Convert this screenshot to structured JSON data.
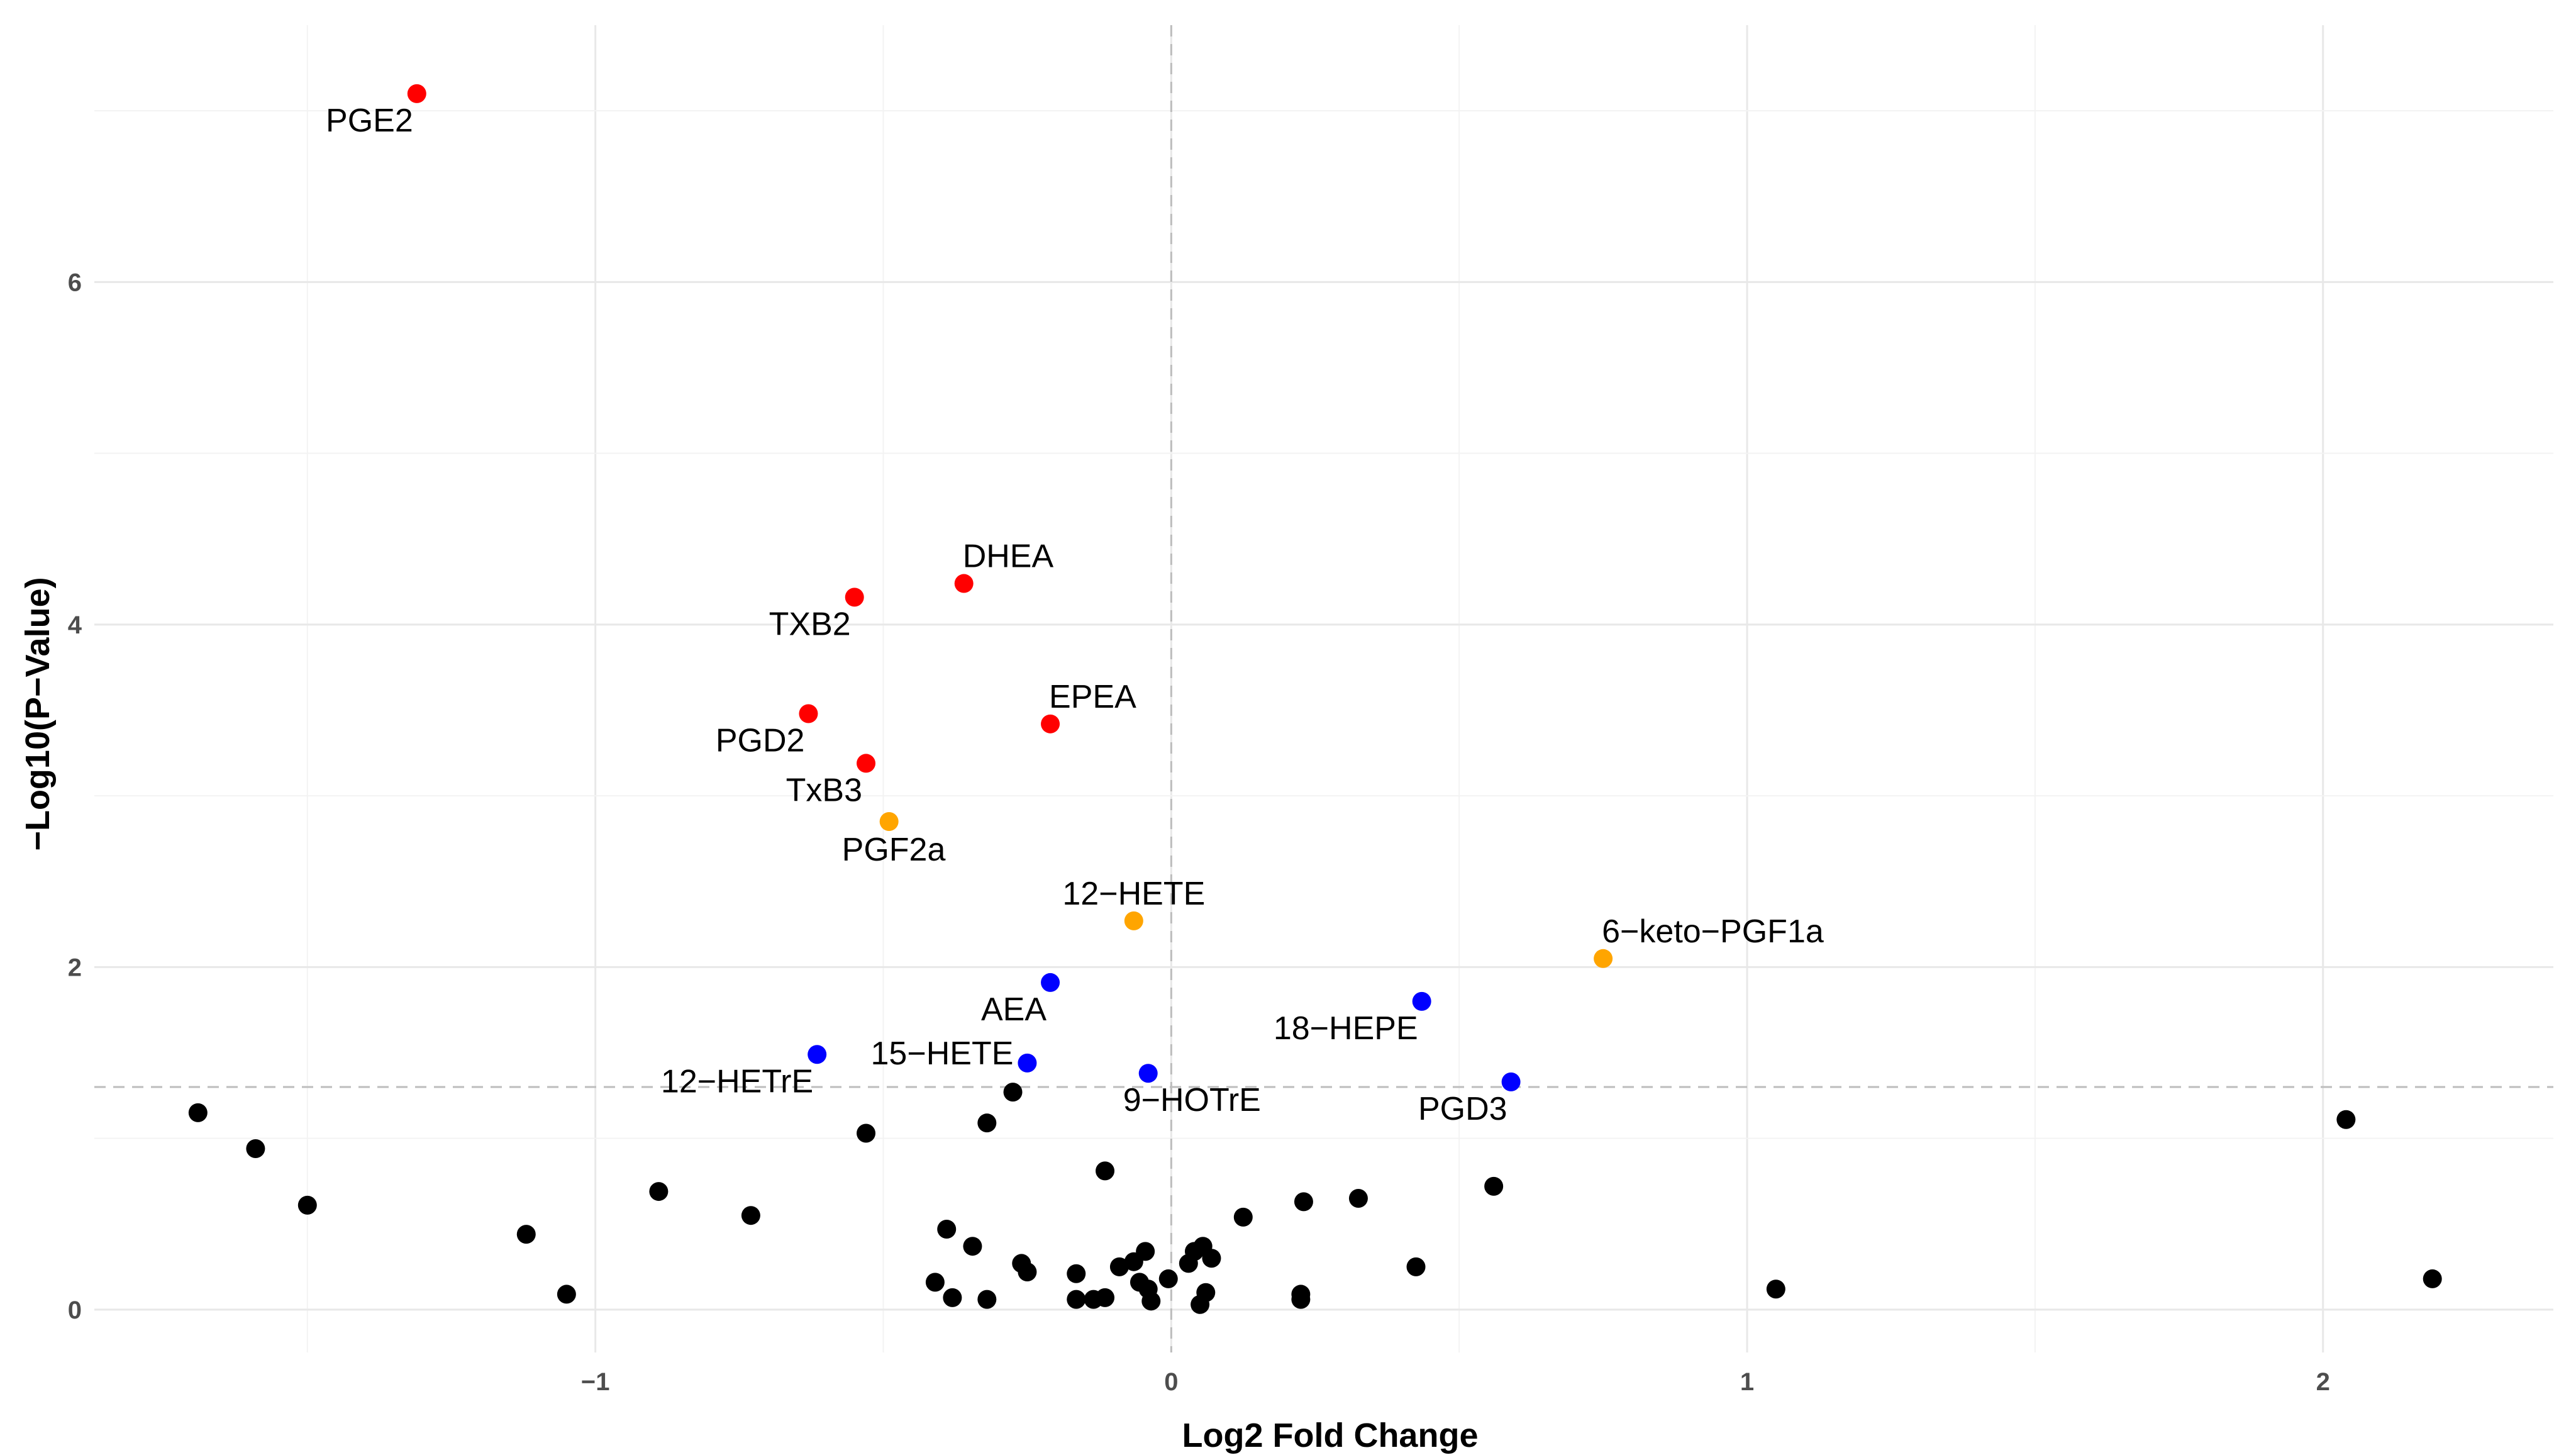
{
  "chart_data": {
    "type": "scatter",
    "title": "",
    "xlabel": "Log2 Fold Change",
    "ylabel": "−Log10(P−Value)",
    "xlim": [
      -1.87,
      2.4
    ],
    "ylim": [
      -0.25,
      7.5
    ],
    "xticks": [
      -1,
      0,
      1,
      2
    ],
    "xtick_labels": [
      "−1",
      "0",
      "1",
      "2"
    ],
    "yticks": [
      0,
      2,
      4,
      6
    ],
    "ytick_labels": [
      "0",
      "2",
      "4",
      "6"
    ],
    "grid": true,
    "reference_lines": {
      "vertical_x": 0,
      "horizontal_y": 1.3
    },
    "colors": {
      "red": "#ff0000",
      "orange": "#ffa500",
      "blue": "#0000ff",
      "black": "#000000"
    },
    "labeled_points": [
      {
        "name": "PGE2",
        "x": -1.31,
        "y": 7.1,
        "color": "red",
        "label_pos": "below-left"
      },
      {
        "name": "DHEA",
        "x": -0.36,
        "y": 4.24,
        "color": "red",
        "label_pos": "above-right"
      },
      {
        "name": "TXB2",
        "x": -0.55,
        "y": 4.16,
        "color": "red",
        "label_pos": "below-left"
      },
      {
        "name": "EPEA",
        "x": -0.21,
        "y": 3.42,
        "color": "red",
        "label_pos": "above-right"
      },
      {
        "name": "PGD2",
        "x": -0.63,
        "y": 3.48,
        "color": "red",
        "label_pos": "below-left"
      },
      {
        "name": "TxB3",
        "x": -0.53,
        "y": 3.19,
        "color": "red",
        "label_pos": "below-left"
      },
      {
        "name": "PGF2a",
        "x": -0.49,
        "y": 2.85,
        "color": "orange",
        "label_pos": "below"
      },
      {
        "name": "12−HETE",
        "x": -0.065,
        "y": 2.27,
        "color": "orange",
        "label_pos": "above"
      },
      {
        "name": "6−keto−PGF1a",
        "x": 0.75,
        "y": 2.05,
        "color": "orange",
        "label_pos": "above-right"
      },
      {
        "name": "AEA",
        "x": -0.21,
        "y": 1.91,
        "color": "blue",
        "label_pos": "below-left"
      },
      {
        "name": "18−HEPE",
        "x": 0.435,
        "y": 1.8,
        "color": "blue",
        "label_pos": "below-left"
      },
      {
        "name": "12−HETrE",
        "x": -0.615,
        "y": 1.49,
        "color": "blue",
        "label_pos": "below-left"
      },
      {
        "name": "15−HETE",
        "x": -0.25,
        "y": 1.44,
        "color": "blue",
        "label_pos": "left"
      },
      {
        "name": "9−HOTrE",
        "x": -0.04,
        "y": 1.38,
        "color": "blue",
        "label_pos": "below-right"
      },
      {
        "name": "PGD3",
        "x": 0.59,
        "y": 1.33,
        "color": "blue",
        "label_pos": "below-left"
      }
    ],
    "unlabeled_points": [
      {
        "x": -1.69,
        "y": 1.15
      },
      {
        "x": -1.59,
        "y": 0.94
      },
      {
        "x": -1.5,
        "y": 0.61
      },
      {
        "x": -1.12,
        "y": 0.44
      },
      {
        "x": -1.05,
        "y": 0.09
      },
      {
        "x": -0.89,
        "y": 0.69
      },
      {
        "x": -0.73,
        "y": 0.55
      },
      {
        "x": -0.53,
        "y": 1.03
      },
      {
        "x": -0.41,
        "y": 0.16
      },
      {
        "x": -0.39,
        "y": 0.47
      },
      {
        "x": -0.38,
        "y": 0.07
      },
      {
        "x": -0.345,
        "y": 0.37
      },
      {
        "x": -0.32,
        "y": 1.09
      },
      {
        "x": -0.32,
        "y": 0.06
      },
      {
        "x": -0.275,
        "y": 1.27
      },
      {
        "x": -0.26,
        "y": 0.27
      },
      {
        "x": -0.25,
        "y": 0.22
      },
      {
        "x": -0.165,
        "y": 0.21
      },
      {
        "x": -0.165,
        "y": 0.06
      },
      {
        "x": -0.135,
        "y": 0.06
      },
      {
        "x": -0.115,
        "y": 0.07
      },
      {
        "x": -0.115,
        "y": 0.81
      },
      {
        "x": -0.09,
        "y": 0.25
      },
      {
        "x": -0.065,
        "y": 0.28
      },
      {
        "x": -0.055,
        "y": 0.16
      },
      {
        "x": -0.045,
        "y": 0.34
      },
      {
        "x": -0.04,
        "y": 0.12
      },
      {
        "x": -0.035,
        "y": 0.05
      },
      {
        "x": -0.005,
        "y": 0.18
      },
      {
        "x": 0.03,
        "y": 0.27
      },
      {
        "x": 0.04,
        "y": 0.34
      },
      {
        "x": 0.05,
        "y": 0.03
      },
      {
        "x": 0.055,
        "y": 0.37
      },
      {
        "x": 0.06,
        "y": 0.1
      },
      {
        "x": 0.07,
        "y": 0.3
      },
      {
        "x": 0.125,
        "y": 0.54
      },
      {
        "x": 0.225,
        "y": 0.09
      },
      {
        "x": 0.225,
        "y": 0.06
      },
      {
        "x": 0.23,
        "y": 0.63
      },
      {
        "x": 0.325,
        "y": 0.65
      },
      {
        "x": 0.425,
        "y": 0.25
      },
      {
        "x": 0.56,
        "y": 0.72
      },
      {
        "x": 1.05,
        "y": 0.12
      },
      {
        "x": 2.04,
        "y": 1.11
      },
      {
        "x": 2.19,
        "y": 0.18
      }
    ]
  }
}
